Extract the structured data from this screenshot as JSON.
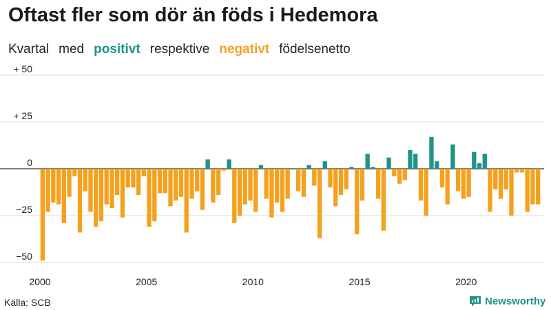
{
  "title": "Oftast fler som dör än föds i Hedemora",
  "subtitle": {
    "word1": "Kvartal",
    "word2": "med",
    "positive": "positivt",
    "word4": "respektive",
    "negative": "negativt",
    "word6": "födelsenetto"
  },
  "source": "Källa: SCB",
  "brand": "Newsworthy",
  "colors": {
    "positive": "#1e9487",
    "negative": "#f4a11e"
  },
  "chart_data": {
    "type": "bar",
    "title": "Oftast fler som dör än föds i Hedemora",
    "xlabel": "",
    "ylabel": "",
    "ylim": [
      -50,
      50
    ],
    "yticks": [
      50,
      25,
      0,
      -25,
      -50
    ],
    "ytick_labels": [
      "+ 50",
      "+ 25",
      "0",
      "−25",
      "−50"
    ],
    "xticks": [
      2000,
      2005,
      2010,
      2015,
      2020
    ],
    "grid": "horizontal",
    "start_year": 2000,
    "periods_per_year": 4,
    "values": [
      -49,
      -23,
      -18,
      -19,
      -29,
      -15,
      -4,
      -34,
      -12,
      -23,
      -31,
      -28,
      -19,
      -21,
      -14,
      -26,
      -10,
      -10,
      -14,
      -4,
      -31,
      -28,
      -13,
      -13,
      -20,
      -17,
      -15,
      -34,
      -16,
      -12,
      -22,
      5,
      -18,
      -14,
      -1,
      5,
      -29,
      -25,
      -19,
      -17,
      -23,
      2,
      -16,
      -26,
      -18,
      -23,
      -16,
      0,
      -12,
      -15,
      2,
      -9,
      -37,
      4,
      -10,
      -20,
      -14,
      -11,
      1,
      -35,
      -17,
      8,
      1,
      -16,
      -33,
      6,
      -4,
      -8,
      -6,
      10,
      8,
      -17,
      -25,
      17,
      4,
      -10,
      -19,
      13,
      -12,
      -16,
      -15,
      9,
      3,
      8,
      -23,
      -11,
      -16,
      -11,
      -25,
      -2,
      -2,
      -23,
      -19,
      -19
    ]
  }
}
